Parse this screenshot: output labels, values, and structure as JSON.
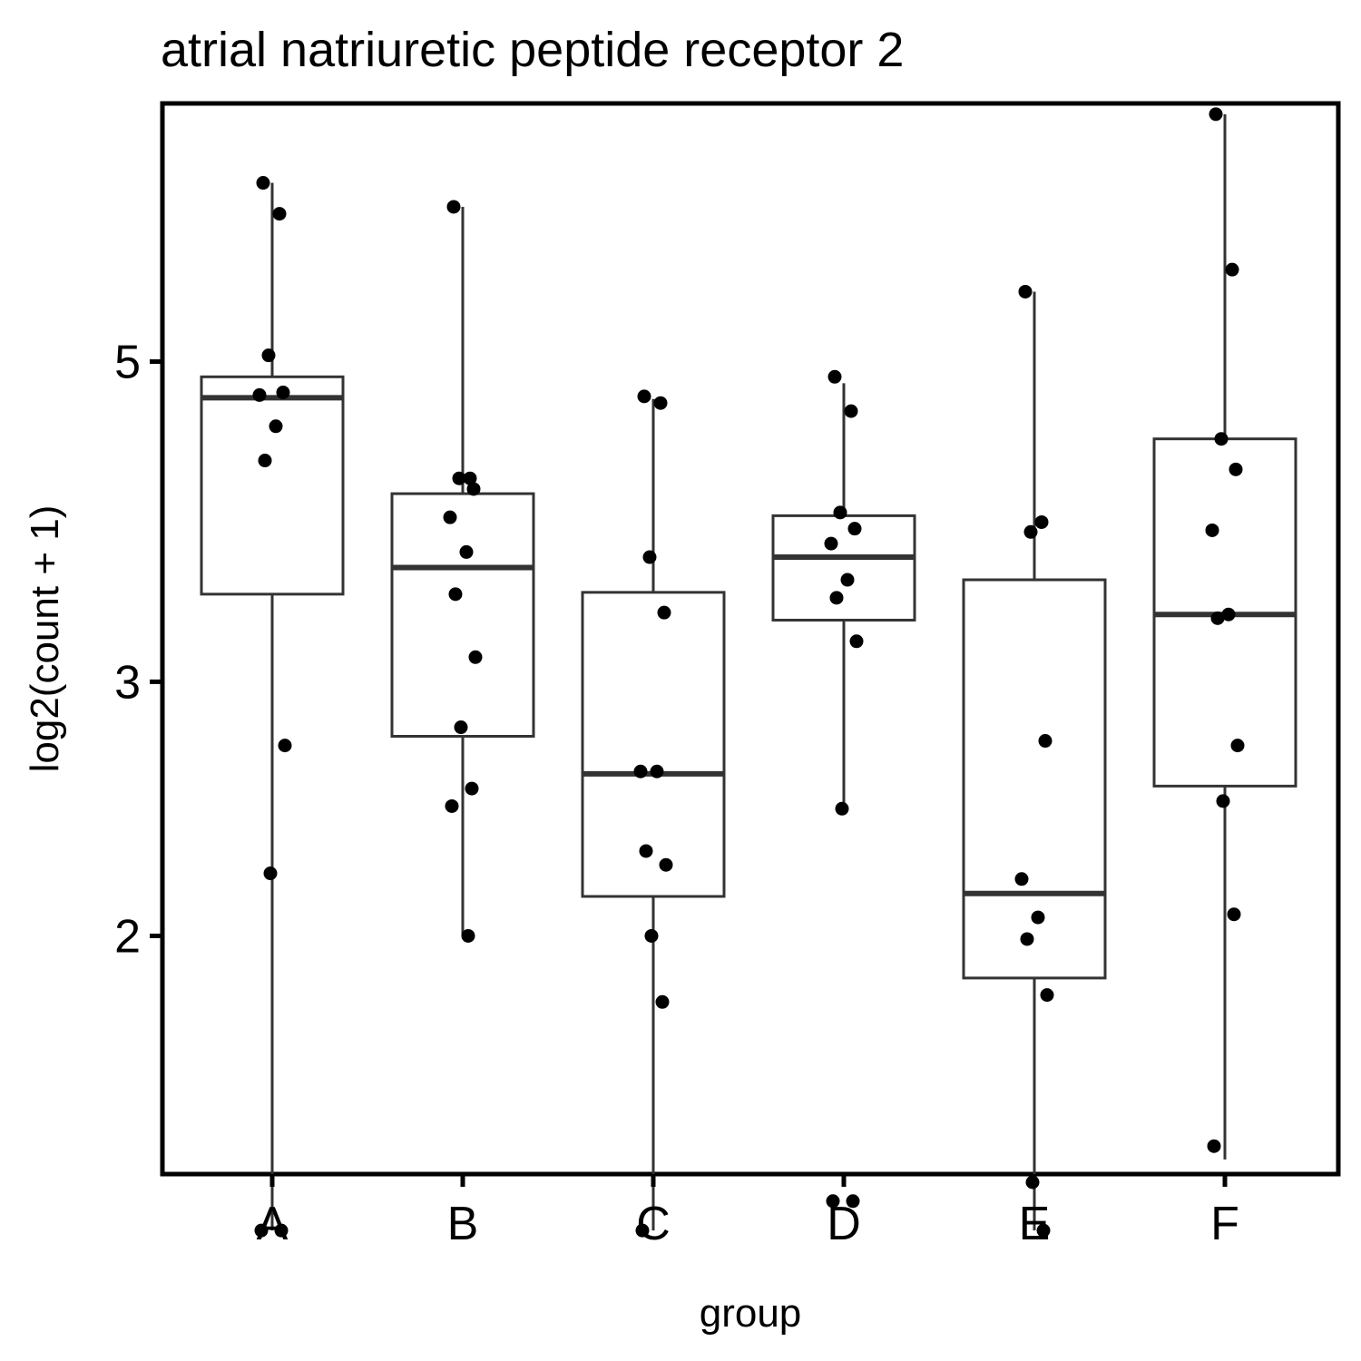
{
  "chart_data": {
    "type": "box",
    "title": "atrial natriuretic peptide receptor 2",
    "xlabel": "group",
    "ylabel": "log2(count + 1)",
    "y_scale": "log",
    "ylim": [
      1.2,
      7.3
    ],
    "yticks": [
      2,
      3,
      5
    ],
    "ytick_labels": [
      "2",
      "3",
      "5"
    ],
    "categories": [
      "A",
      "B",
      "C",
      "D",
      "E",
      "F"
    ],
    "grid": false,
    "boxes": [
      {
        "group": "A",
        "whisker_low": 1.25,
        "q1": 3.45,
        "median": 4.72,
        "q3": 4.88,
        "whisker_high": 6.65
      },
      {
        "group": "B",
        "whisker_low": 2.0,
        "q1": 2.75,
        "median": 3.6,
        "q3": 4.05,
        "whisker_high": 6.4
      },
      {
        "group": "C",
        "whisker_low": 1.25,
        "q1": 2.13,
        "median": 2.59,
        "q3": 3.46,
        "whisker_high": 4.71
      },
      {
        "group": "D",
        "whisker_low": 2.45,
        "q1": 3.31,
        "median": 3.66,
        "q3": 3.91,
        "whisker_high": 4.83
      },
      {
        "group": "E",
        "whisker_low": 1.25,
        "q1": 1.87,
        "median": 2.14,
        "q3": 3.53,
        "whisker_high": 5.59
      },
      {
        "group": "F",
        "whisker_low": 1.4,
        "q1": 2.54,
        "median": 3.34,
        "q3": 4.42,
        "whisker_high": 7.42
      }
    ],
    "points": [
      {
        "group": "A",
        "y": [
          6.65,
          6.33,
          5.05,
          4.76,
          4.74,
          4.51,
          4.27,
          2.71,
          2.21,
          1.25,
          1.25
        ]
      },
      {
        "group": "B",
        "y": [
          6.4,
          4.15,
          4.15,
          4.08,
          3.9,
          3.69,
          3.45,
          3.12,
          2.79,
          2.53,
          2.46,
          2.0
        ]
      },
      {
        "group": "C",
        "y": [
          4.73,
          4.68,
          3.66,
          3.35,
          2.6,
          2.6,
          2.29,
          2.24,
          2.0,
          1.8,
          1.25
        ]
      },
      {
        "group": "D",
        "y": [
          4.88,
          4.62,
          3.93,
          3.83,
          3.74,
          3.53,
          3.43,
          3.2,
          2.45,
          1.31,
          1.31
        ]
      },
      {
        "group": "E",
        "y": [
          5.59,
          3.87,
          3.81,
          2.73,
          2.19,
          2.06,
          1.99,
          1.82,
          1.35,
          1.25
        ]
      },
      {
        "group": "F",
        "y": [
          7.42,
          5.79,
          4.42,
          4.21,
          3.82,
          3.34,
          3.32,
          2.71,
          2.48,
          2.07,
          1.43
        ]
      }
    ]
  }
}
